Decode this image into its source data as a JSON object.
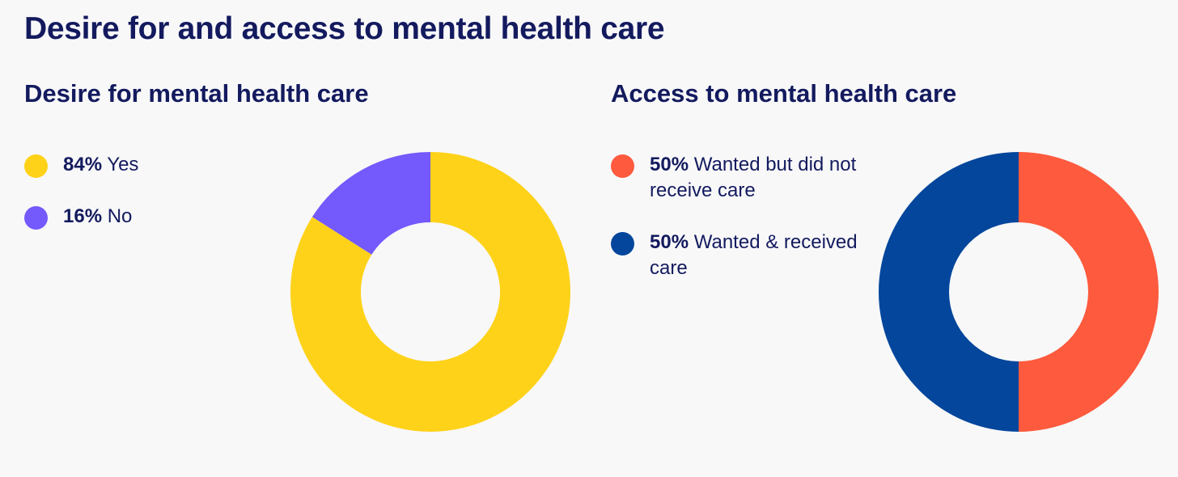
{
  "title": "Desire for and access to mental health care",
  "chart_data": [
    {
      "type": "pie",
      "donut": true,
      "title": "Desire for mental health care",
      "slices": [
        {
          "pct_label": "84%",
          "label": "Yes",
          "value": 84,
          "color": "#fed219"
        },
        {
          "pct_label": "16%",
          "label": "No",
          "value": 16,
          "color": "#7459fc"
        }
      ]
    },
    {
      "type": "pie",
      "donut": true,
      "title": "Access to mental health care",
      "slices": [
        {
          "pct_label": "50%",
          "label": "Wanted but did not receive care",
          "value": 50,
          "color": "#fe5a3d"
        },
        {
          "pct_label": "50%",
          "label": "Wanted & received care",
          "value": 50,
          "color": "#03469c"
        }
      ]
    }
  ]
}
